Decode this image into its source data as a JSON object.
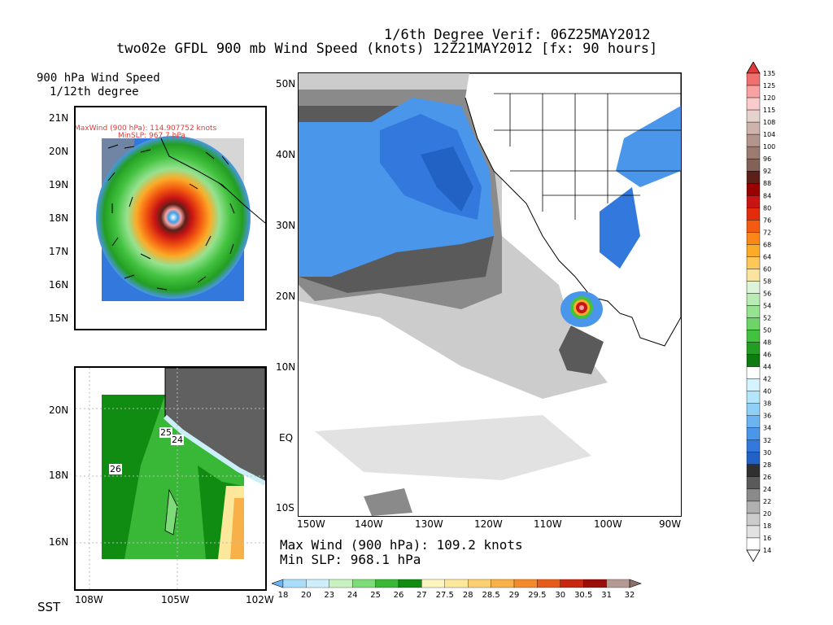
{
  "header": {
    "line1": "1/6th Degree Verif: 06Z25MAY2012",
    "line2": "two02e GFDL 900 mb Wind Speed (knots) 12Z21MAY2012 [fx: 90 hours]"
  },
  "top_panel": {
    "title_line1": "900 hPa Wind Speed",
    "title_line2": "1/12th degree",
    "annotation_maxwind": "MaxWind (900 hPa): 114.907752 knots",
    "annotation_minslp": "MinSLP: 967.7 hPa",
    "y_labels": [
      "21N",
      "20N",
      "19N",
      "18N",
      "17N",
      "16N",
      "15N"
    ]
  },
  "sst_panel": {
    "label": "SST",
    "y_labels": [
      "20N",
      "18N",
      "16N"
    ],
    "x_labels": [
      "108W",
      "105W",
      "102W"
    ],
    "contour_labels": [
      "25",
      "24",
      "26"
    ]
  },
  "main_map": {
    "y_labels": [
      "50N",
      "40N",
      "30N",
      "20N",
      "10N",
      "EQ",
      "10S"
    ],
    "x_labels": [
      "150W",
      "140W",
      "130W",
      "120W",
      "110W",
      "100W",
      "90W"
    ],
    "max_wind": "Max Wind (900 hPa): 109.2 knots",
    "min_slp": "Min SLP: 968.1 hPa"
  },
  "wind_colorbar": {
    "labels": [
      "135",
      "125",
      "120",
      "115",
      "108",
      "104",
      "100",
      "96",
      "92",
      "88",
      "84",
      "80",
      "76",
      "72",
      "68",
      "64",
      "60",
      "58",
      "56",
      "54",
      "52",
      "50",
      "48",
      "46",
      "44",
      "42",
      "40",
      "38",
      "36",
      "34",
      "32",
      "30",
      "28",
      "26",
      "24",
      "22",
      "20",
      "18",
      "16",
      "14"
    ],
    "colors": [
      "#e03c3c",
      "#f06f6f",
      "#f7a3a3",
      "#fbcaca",
      "#e6d2cc",
      "#cdb3ab",
      "#b3958b",
      "#9c7c70",
      "#826256",
      "#5c2018",
      "#990000",
      "#c81414",
      "#e22c0c",
      "#f45a10",
      "#f98818",
      "#fbab28",
      "#fcc85a",
      "#fbe4a0",
      "#ddf4d8",
      "#b9ecb4",
      "#95e290",
      "#6cd468",
      "#43c240",
      "#239e22",
      "#0c7c10",
      "#ffffff",
      "#d4f4ff",
      "#b4e6fb",
      "#90d0f7",
      "#6cb4f1",
      "#4a96ea",
      "#3278dd",
      "#2262c4",
      "#303030",
      "#5a5a5a",
      "#8a8a8a",
      "#b0b0b0",
      "#cccccc",
      "#e2e2e2",
      "#ffffff"
    ]
  },
  "sst_colorbar": {
    "labels": [
      "18",
      "20",
      "23",
      "24",
      "25",
      "26",
      "27",
      "27.5",
      "28",
      "28.5",
      "29",
      "29.5",
      "30",
      "30.5",
      "31",
      "32"
    ],
    "colors": [
      "#6cb4f1",
      "#a8dcf8",
      "#cdeff9",
      "#c8f3c0",
      "#7ddb78",
      "#39b838",
      "#108c12",
      "#fdf5c0",
      "#fce79a",
      "#fbd070",
      "#f8b048",
      "#f38a2c",
      "#e65a1a",
      "#c82810",
      "#9a0f0a",
      "#b49a92",
      "#8a706a"
    ]
  }
}
